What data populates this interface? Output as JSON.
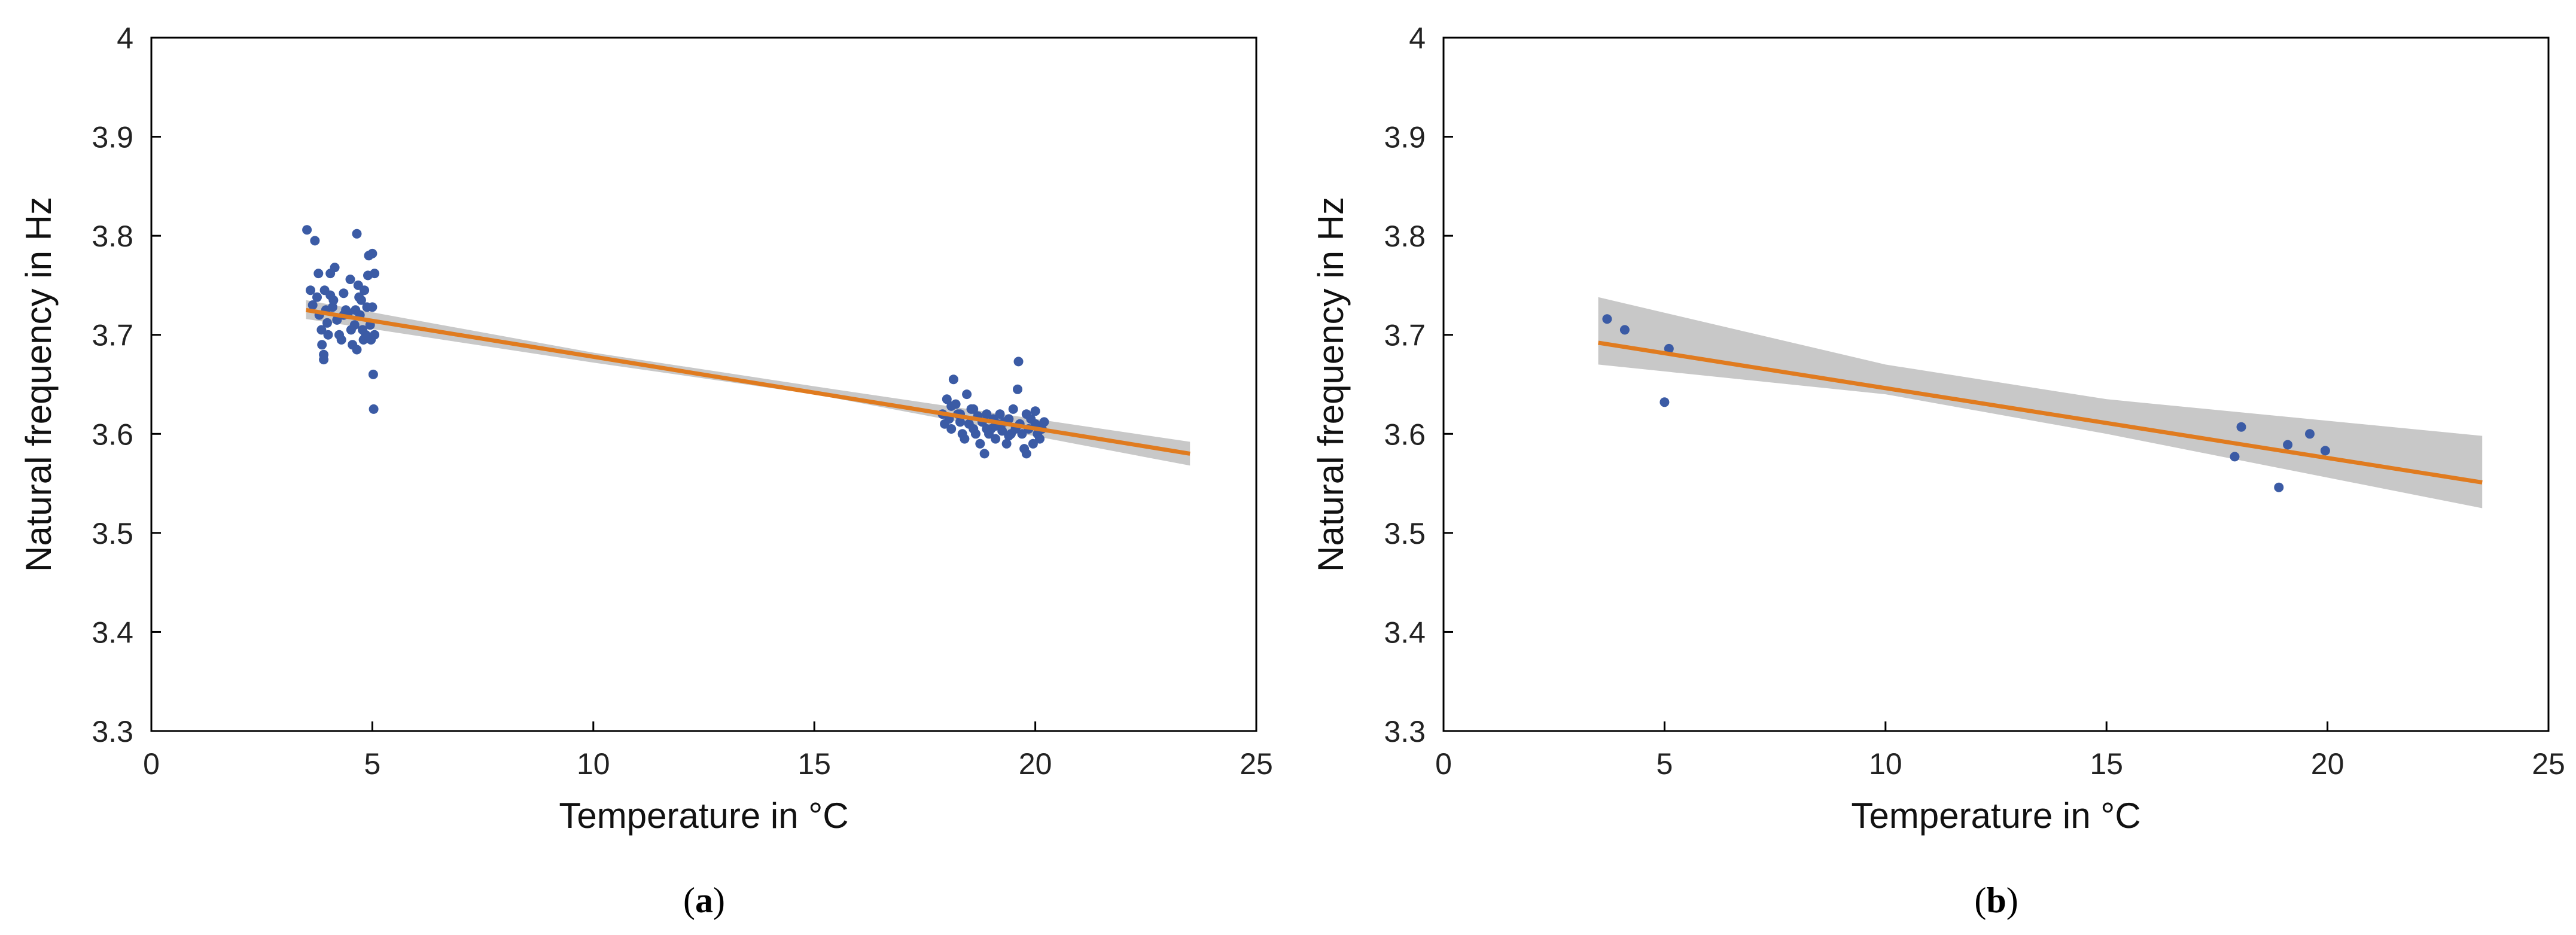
{
  "colors": {
    "points": "#3b5ba5",
    "fit": "#e07b1f",
    "band": "#c8c8c8",
    "axis": "#000000"
  },
  "chart_data": [
    {
      "type": "scatter",
      "id": "a",
      "caption_open": "(",
      "caption_letter": "a",
      "caption_close": ")",
      "xlabel": "Temperature in °C",
      "ylabel": "Natural frequency in Hz",
      "xlim": [
        0,
        25
      ],
      "ylim": [
        3.3,
        4
      ],
      "xticks": [
        0,
        5,
        10,
        15,
        20,
        25
      ],
      "xtick_labels": [
        "0",
        "5",
        "10",
        "15",
        "20",
        "25"
      ],
      "yticks": [
        3.3,
        3.4,
        3.5,
        3.6,
        3.7,
        3.8,
        3.9,
        4
      ],
      "ytick_labels": [
        "3.3",
        "3.4",
        "3.5",
        "3.6",
        "3.7",
        "3.8",
        "3.9",
        "4"
      ],
      "grid": false,
      "fit": {
        "x": [
          3.5,
          23.5
        ],
        "y": [
          3.725,
          3.58
        ]
      },
      "band": {
        "x": [
          3.5,
          10,
          15,
          23.5
        ],
        "lower": [
          3.716,
          3.672,
          3.64,
          3.568
        ],
        "upper": [
          3.735,
          3.682,
          3.648,
          3.592
        ]
      },
      "points": [
        [
          3.52,
          3.806
        ],
        [
          3.6,
          3.745
        ],
        [
          3.7,
          3.795
        ],
        [
          3.75,
          3.738
        ],
        [
          3.78,
          3.762
        ],
        [
          3.8,
          3.72
        ],
        [
          3.85,
          3.705
        ],
        [
          3.86,
          3.69
        ],
        [
          3.9,
          3.68
        ],
        [
          3.92,
          3.745
        ],
        [
          3.95,
          3.725
        ],
        [
          3.98,
          3.712
        ],
        [
          4.0,
          3.7
        ],
        [
          4.05,
          3.762
        ],
        [
          4.1,
          3.728
        ],
        [
          4.12,
          3.735
        ],
        [
          4.15,
          3.768
        ],
        [
          4.2,
          3.715
        ],
        [
          4.25,
          3.7
        ],
        [
          4.3,
          3.695
        ],
        [
          4.35,
          3.742
        ],
        [
          4.4,
          3.725
        ],
        [
          4.45,
          3.722
        ],
        [
          4.5,
          3.756
        ],
        [
          4.52,
          3.705
        ],
        [
          4.6,
          3.71
        ],
        [
          4.62,
          3.725
        ],
        [
          4.65,
          3.802
        ],
        [
          4.68,
          3.75
        ],
        [
          4.7,
          3.738
        ],
        [
          4.72,
          3.72
        ],
        [
          4.75,
          3.735
        ],
        [
          4.78,
          3.705
        ],
        [
          4.8,
          3.695
        ],
        [
          4.82,
          3.745
        ],
        [
          4.85,
          3.7
        ],
        [
          4.88,
          3.728
        ],
        [
          4.9,
          3.76
        ],
        [
          4.92,
          3.78
        ],
        [
          4.95,
          3.71
        ],
        [
          4.97,
          3.695
        ],
        [
          5.0,
          3.782
        ],
        [
          5.0,
          3.728
        ],
        [
          5.02,
          3.66
        ],
        [
          5.03,
          3.625
        ],
        [
          5.05,
          3.7
        ],
        [
          5.05,
          3.762
        ],
        [
          4.55,
          3.69
        ],
        [
          4.65,
          3.685
        ],
        [
          3.9,
          3.675
        ],
        [
          4.35,
          3.72
        ],
        [
          3.65,
          3.73
        ],
        [
          4.05,
          3.74
        ],
        [
          17.9,
          3.62
        ],
        [
          17.95,
          3.61
        ],
        [
          18.0,
          3.635
        ],
        [
          18.05,
          3.615
        ],
        [
          18.1,
          3.605
        ],
        [
          18.15,
          3.655
        ],
        [
          18.2,
          3.63
        ],
        [
          18.25,
          3.62
        ],
        [
          18.3,
          3.612
        ],
        [
          18.35,
          3.6
        ],
        [
          18.4,
          3.595
        ],
        [
          18.45,
          3.64
        ],
        [
          18.5,
          3.61
        ],
        [
          18.55,
          3.625
        ],
        [
          18.6,
          3.605
        ],
        [
          18.65,
          3.6
        ],
        [
          18.7,
          3.618
        ],
        [
          18.75,
          3.59
        ],
        [
          18.8,
          3.612
        ],
        [
          18.85,
          3.58
        ],
        [
          18.9,
          3.62
        ],
        [
          18.95,
          3.6
        ],
        [
          19.0,
          3.605
        ],
        [
          19.05,
          3.615
        ],
        [
          19.1,
          3.595
        ],
        [
          19.15,
          3.61
        ],
        [
          19.2,
          3.62
        ],
        [
          19.25,
          3.603
        ],
        [
          19.3,
          3.612
        ],
        [
          19.35,
          3.59
        ],
        [
          19.4,
          3.615
        ],
        [
          19.45,
          3.6
        ],
        [
          19.5,
          3.625
        ],
        [
          19.55,
          3.605
        ],
        [
          19.6,
          3.645
        ],
        [
          19.62,
          3.673
        ],
        [
          19.65,
          3.61
        ],
        [
          19.7,
          3.6
        ],
        [
          19.75,
          3.585
        ],
        [
          19.8,
          3.62
        ],
        [
          19.85,
          3.605
        ],
        [
          19.9,
          3.615
        ],
        [
          19.95,
          3.59
        ],
        [
          20.0,
          3.61
        ],
        [
          20.05,
          3.6
        ],
        [
          20.1,
          3.595
        ],
        [
          20.15,
          3.605
        ],
        [
          20.2,
          3.612
        ],
        [
          18.6,
          3.625
        ],
        [
          18.3,
          3.62
        ],
        [
          19.1,
          3.608
        ],
        [
          19.4,
          3.598
        ],
        [
          18.9,
          3.605
        ],
        [
          19.8,
          3.58
        ],
        [
          18.1,
          3.628
        ],
        [
          20.0,
          3.623
        ]
      ]
    },
    {
      "type": "scatter",
      "id": "b",
      "caption_open": "(",
      "caption_letter": "b",
      "caption_close": ")",
      "xlabel": "Temperature in °C",
      "ylabel": "Natural frequency in Hz",
      "xlim": [
        0,
        25
      ],
      "ylim": [
        3.3,
        4
      ],
      "xticks": [
        0,
        5,
        10,
        15,
        20,
        25
      ],
      "xtick_labels": [
        "0",
        "5",
        "10",
        "15",
        "20",
        "25"
      ],
      "yticks": [
        3.3,
        3.4,
        3.5,
        3.6,
        3.7,
        3.8,
        3.9,
        4
      ],
      "ytick_labels": [
        "3.3",
        "3.4",
        "3.5",
        "3.6",
        "3.7",
        "3.8",
        "3.9",
        "4"
      ],
      "grid": false,
      "fit": {
        "x": [
          3.5,
          23.5
        ],
        "y": [
          3.692,
          3.551
        ]
      },
      "band": {
        "x": [
          3.5,
          10,
          15,
          23.5
        ],
        "lower": [
          3.67,
          3.64,
          3.6,
          3.525
        ],
        "upper": [
          3.738,
          3.67,
          3.635,
          3.598
        ]
      },
      "points": [
        [
          3.7,
          3.716
        ],
        [
          4.1,
          3.705
        ],
        [
          5.0,
          3.632
        ],
        [
          5.1,
          3.686
        ],
        [
          17.9,
          3.577
        ],
        [
          18.05,
          3.607
        ],
        [
          18.9,
          3.546
        ],
        [
          19.1,
          3.589
        ],
        [
          19.6,
          3.6
        ],
        [
          19.95,
          3.583
        ]
      ]
    }
  ]
}
